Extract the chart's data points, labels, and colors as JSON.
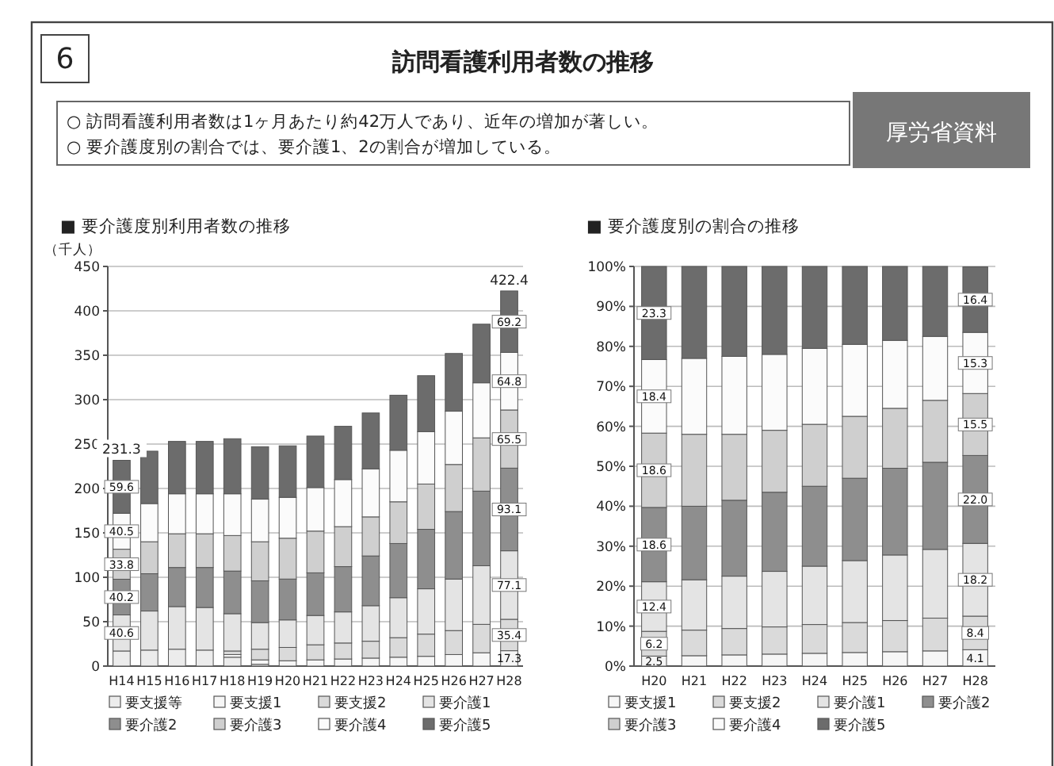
{
  "chart_data": [
    {
      "type": "other",
      "title": "訪問看護利用者数の推移",
      "annotations": [
        "6",
        "○ 訪問看護利用者数は1ヶ月あたり約42万人であり、近年の増加が著しい。",
        "○ 要介護度別の割合では、要介護1、2の割合が増加している。",
        "厚労省資料"
      ]
    },
    {
      "type": "bar",
      "stacked": true,
      "title": "■ 要介護度別利用者数の推移",
      "ylabel": "（千人）",
      "categories": [
        "H14",
        "H15",
        "H16",
        "H17",
        "H18",
        "H19",
        "H20",
        "H21",
        "H22",
        "H23",
        "H24",
        "H25",
        "H26",
        "H27",
        "H28"
      ],
      "ylim": [
        0,
        450
      ],
      "yticks": [
        0,
        50,
        100,
        150,
        200,
        250,
        300,
        350,
        400,
        450
      ],
      "grid": "y",
      "legend": "bottom",
      "series": [
        {
          "name": "要支援等",
          "color": "#ececec",
          "values": [
            17,
            18,
            19,
            18,
            10,
            2,
            0,
            0,
            0,
            0,
            0,
            0,
            0,
            0,
            0
          ]
        },
        {
          "name": "要支援1",
          "color": "#f6f6f6",
          "values": [
            0,
            0,
            0,
            0,
            3,
            5,
            6,
            7,
            8,
            9,
            10,
            11,
            13,
            15,
            17.3
          ],
          "value_labels": [
            null,
            null,
            null,
            null,
            null,
            null,
            null,
            null,
            null,
            null,
            null,
            null,
            null,
            null,
            "17.3"
          ]
        },
        {
          "name": "要支援2",
          "color": "#dadada",
          "values": [
            0,
            0,
            0,
            0,
            4,
            12,
            15,
            17,
            18,
            19,
            22,
            25,
            27,
            32,
            35.4
          ],
          "value_labels": [
            null,
            null,
            null,
            null,
            null,
            null,
            null,
            null,
            null,
            null,
            null,
            null,
            null,
            null,
            "35.4"
          ]
        },
        {
          "name": "要介護1",
          "color": "#e4e4e4",
          "values": [
            40.6,
            44,
            48,
            48,
            42,
            30,
            31,
            33,
            35,
            40,
            45,
            51,
            58,
            66,
            77.1
          ],
          "value_labels": [
            "40.6",
            null,
            null,
            null,
            null,
            null,
            null,
            null,
            null,
            null,
            null,
            null,
            null,
            null,
            "77.1"
          ]
        },
        {
          "name": "要介護2",
          "color": "#8e8e8e",
          "values": [
            40.2,
            42,
            44,
            45,
            48,
            47,
            46,
            48,
            51,
            56,
            61,
            67,
            76,
            84,
            93.1
          ],
          "value_labels": [
            "40.2",
            null,
            null,
            null,
            null,
            null,
            null,
            null,
            null,
            null,
            null,
            null,
            null,
            null,
            "93.1"
          ]
        },
        {
          "name": "要介護3",
          "color": "#cfcfcf",
          "values": [
            33.8,
            36,
            38,
            38,
            40,
            44,
            46,
            47,
            45,
            44,
            47,
            51,
            53,
            60,
            65.5
          ],
          "value_labels": [
            "33.8",
            null,
            null,
            null,
            null,
            null,
            null,
            null,
            null,
            null,
            null,
            null,
            null,
            null,
            "65.5"
          ]
        },
        {
          "name": "要介護4",
          "color": "#fbfbfb",
          "values": [
            40.5,
            43,
            45,
            45,
            47,
            48,
            46,
            49,
            53,
            54,
            58,
            59,
            60,
            62,
            64.8
          ],
          "value_labels": [
            "40.5",
            null,
            null,
            null,
            null,
            null,
            null,
            null,
            null,
            null,
            null,
            null,
            null,
            null,
            "64.8"
          ]
        },
        {
          "name": "要介護5",
          "color": "#6c6c6c",
          "values": [
            59.6,
            59,
            59,
            59,
            62,
            59,
            58,
            58,
            60,
            63,
            62,
            63,
            65,
            66,
            69.2
          ],
          "value_labels": [
            "59.6",
            null,
            null,
            null,
            null,
            null,
            null,
            null,
            null,
            null,
            null,
            null,
            null,
            null,
            "69.2"
          ]
        }
      ],
      "totals": [
        "231.3",
        null,
        null,
        null,
        null,
        null,
        null,
        null,
        null,
        null,
        null,
        null,
        null,
        null,
        "422.4"
      ]
    },
    {
      "type": "bar",
      "stacked": true,
      "title": "■ 要介護度別の割合の推移",
      "categories": [
        "H20",
        "H21",
        "H22",
        "H23",
        "H24",
        "H25",
        "H26",
        "H27",
        "H28"
      ],
      "ylim": [
        0,
        100
      ],
      "yticks": [
        {
          "value": 0,
          "label": "0%"
        },
        {
          "value": 10,
          "label": "10%"
        },
        {
          "value": 20,
          "label": "20%"
        },
        {
          "value": 30,
          "label": "30%"
        },
        {
          "value": 40,
          "label": "40%"
        },
        {
          "value": 50,
          "label": "50%"
        },
        {
          "value": 60,
          "label": "60%"
        },
        {
          "value": 70,
          "label": "70%"
        },
        {
          "value": 80,
          "label": "80%"
        },
        {
          "value": 90,
          "label": "90%"
        },
        {
          "value": 100,
          "label": "100%"
        }
      ],
      "grid": "y",
      "legend": "bottom",
      "series": [
        {
          "name": "要支援1",
          "color": "#f6f6f6",
          "values": [
            2.5,
            2.6,
            2.8,
            3.0,
            3.2,
            3.4,
            3.6,
            3.8,
            4.1
          ],
          "value_labels": [
            "2.5",
            null,
            null,
            null,
            null,
            null,
            null,
            null,
            "4.1"
          ]
        },
        {
          "name": "要支援2",
          "color": "#dadada",
          "values": [
            6.2,
            6.4,
            6.6,
            6.8,
            7.2,
            7.5,
            7.8,
            8.2,
            8.4
          ],
          "value_labels": [
            "6.2",
            null,
            null,
            null,
            null,
            null,
            null,
            null,
            "8.4"
          ]
        },
        {
          "name": "要介護1",
          "color": "#e4e4e4",
          "values": [
            12.4,
            12.6,
            13.1,
            13.9,
            14.6,
            15.5,
            16.4,
            17.2,
            18.2
          ],
          "value_labels": [
            "12.4",
            null,
            null,
            null,
            null,
            null,
            null,
            null,
            "18.2"
          ]
        },
        {
          "name": "要介護2",
          "color": "#8e8e8e",
          "values": [
            18.6,
            18.4,
            19.0,
            19.8,
            20.0,
            20.6,
            21.7,
            21.8,
            22.0
          ],
          "value_labels": [
            "18.6",
            null,
            null,
            null,
            null,
            null,
            null,
            null,
            "22.0"
          ]
        },
        {
          "name": "要介護3",
          "color": "#cfcfcf",
          "values": [
            18.6,
            18.0,
            16.5,
            15.5,
            15.5,
            15.5,
            15.0,
            15.5,
            15.5
          ],
          "value_labels": [
            "18.6",
            null,
            null,
            null,
            null,
            null,
            null,
            null,
            "15.5"
          ]
        },
        {
          "name": "要介護4",
          "color": "#fbfbfb",
          "values": [
            18.4,
            19.0,
            19.5,
            19.0,
            19.0,
            18.0,
            17.0,
            16.0,
            15.3
          ],
          "value_labels": [
            "18.4",
            null,
            null,
            null,
            null,
            null,
            null,
            null,
            "15.3"
          ]
        },
        {
          "name": "要介護5",
          "color": "#6c6c6c",
          "values": [
            23.3,
            23.0,
            22.5,
            22.0,
            20.5,
            19.5,
            18.5,
            17.5,
            16.4
          ],
          "value_labels": [
            "23.3",
            null,
            null,
            null,
            null,
            null,
            null,
            null,
            "16.4"
          ]
        }
      ]
    }
  ]
}
